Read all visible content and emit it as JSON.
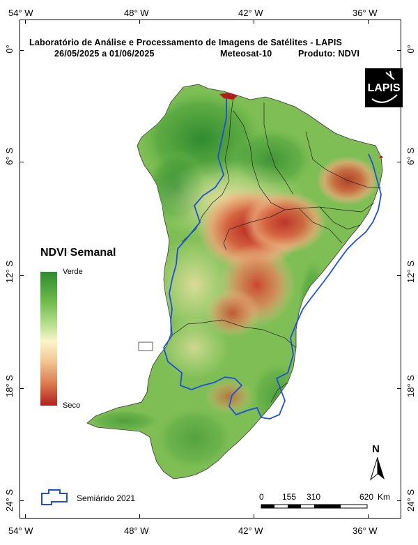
{
  "header": {
    "line1": "Laboratório de Análise e Processamento de Imagens de Satélites - LAPIS",
    "date_range": "26/05/2025  a  01/06/2025",
    "satellite": "Meteosat-10",
    "product": "Produto: NDVI"
  },
  "logo": {
    "text": "LAPIS"
  },
  "axes": {
    "longitudes": [
      "54° W",
      "48° W",
      "42° W",
      "36° W"
    ],
    "latitudes": [
      "0°",
      "6° S",
      "12° S",
      "18° S",
      "24° S"
    ]
  },
  "legend": {
    "title": "NDVI Semanal",
    "top_label": "Verde",
    "bottom_label": "Seco"
  },
  "semiarid": {
    "label": "Semiárido 2021"
  },
  "scale_bar": {
    "labels": [
      "0",
      "155",
      "310",
      "620"
    ],
    "unit": "Km"
  },
  "north_arrow": {
    "label": "N"
  },
  "colors": {
    "green_dark": "#2f8a2f",
    "green_light": "#a9d67a",
    "red_dry": "#c0392b",
    "semiarid_boundary": "#1f4fd6"
  }
}
